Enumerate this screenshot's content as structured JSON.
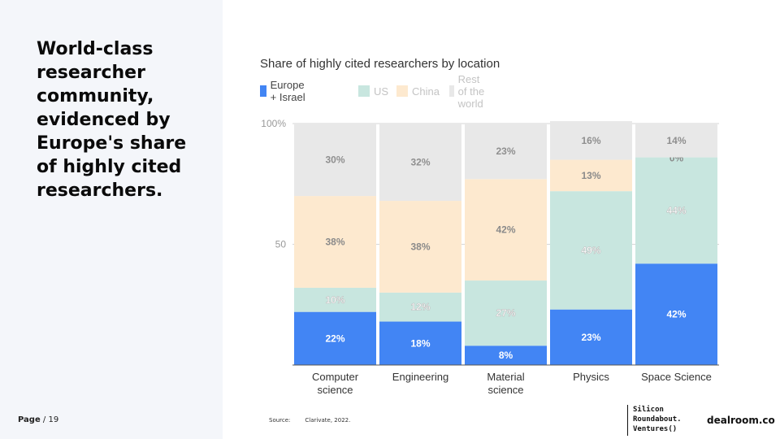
{
  "headline": "World-class\nresearcher\ncommunity,\nevidenced by\nEurope's share\nof highly cited\nresearchers.",
  "footer": {
    "page_word": "Page",
    "page_rest": " / 19",
    "source_label": "Source:",
    "source_text": "Clarivate, 2022.",
    "partner_logo": "Silicon\nRoundabout.\nVentures()",
    "brand": "dealroom.co"
  },
  "colors": {
    "europe": "#4285f4",
    "us": "#c8e6df",
    "china": "#fde9cf",
    "rest": "#e8e8e8",
    "panel": "#f4f6fa"
  },
  "chart_data": {
    "type": "bar",
    "stacked": true,
    "title": "Share of highly cited researchers by location",
    "categories": [
      [
        "Computer",
        "science"
      ],
      [
        "Engineering"
      ],
      [
        "Material",
        "science"
      ],
      [
        "Physics"
      ],
      [
        "Space Science"
      ]
    ],
    "series": [
      {
        "name": "Europe + Israel",
        "key": "europe",
        "values": [
          22,
          18,
          8,
          23,
          42
        ],
        "labels": [
          "22%",
          "18%",
          "8%",
          "23%",
          "42%"
        ]
      },
      {
        "name": "US",
        "key": "us",
        "values": [
          10,
          12,
          27,
          49,
          44
        ],
        "labels": [
          "10%",
          "12%",
          "27%",
          "49%",
          "44%"
        ]
      },
      {
        "name": "China",
        "key": "china",
        "values": [
          38,
          38,
          42,
          13,
          0
        ],
        "labels": [
          "38%",
          "38%",
          "42%",
          "13%",
          "0%"
        ]
      },
      {
        "name": "Rest of the world",
        "key": "rest",
        "values": [
          30,
          32,
          23,
          16,
          14
        ],
        "labels": [
          "30%",
          "32%",
          "23%",
          "16%",
          "14%"
        ]
      }
    ],
    "legend_faded": [
      false,
      true,
      true,
      true
    ],
    "ylim": [
      0,
      100
    ],
    "yticks": [
      {
        "value": 100,
        "label": "100%"
      },
      {
        "value": 50,
        "label": "50"
      }
    ],
    "grid": true,
    "legend_position": "top-left"
  }
}
